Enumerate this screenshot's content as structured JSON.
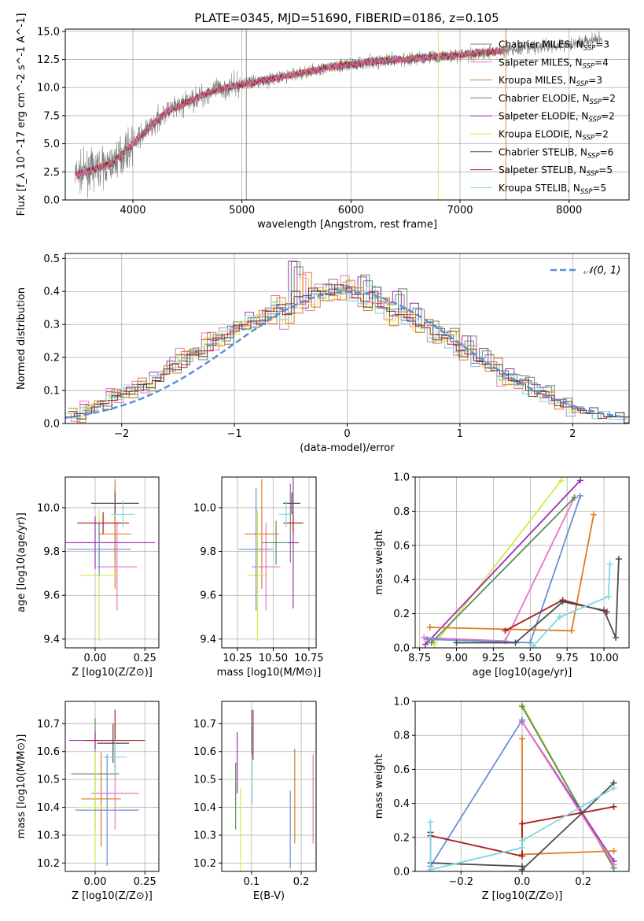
{
  "figure": {
    "title": "PLATE=0345, MJD=51690, FIBERID=0186, z=0.105",
    "models": [
      {
        "name": "Chabrier MILES, N$_{SSP}$=3",
        "label": "Chabrier MILES, N",
        "sub": "SSP",
        "n": "=3",
        "color": "#7f7f7f"
      },
      {
        "name": "Salpeter MILES, N$_{SSP}$=4",
        "label": "Salpeter MILES, N",
        "sub": "SSP",
        "n": "=4",
        "color": "#e377c2"
      },
      {
        "name": "Kroupa MILES, N$_{SSP}$=3",
        "label": "Kroupa MILES, N",
        "sub": "SSP",
        "n": "=3",
        "color": "#e07b20"
      },
      {
        "name": "Chabrier ELODIE, N$_{SSP}$=2",
        "label": "Chabrier ELODIE, N",
        "sub": "SSP",
        "n": "=2",
        "color": "#5a8f5a"
      },
      {
        "name": "Salpeter ELODIE, N$_{SSP}$=2",
        "label": "Salpeter ELODIE, N",
        "sub": "SSP",
        "n": "=2",
        "color": "#9b30b0"
      },
      {
        "name": "Kroupa ELODIE, N$_{SSP}$=2",
        "label": "Kroupa ELODIE, N",
        "sub": "SSP",
        "n": "=2",
        "color": "#d4e84a"
      },
      {
        "name": "Chabrier STELIB, N$_{SSP}$=6",
        "label": "Chabrier STELIB, N",
        "sub": "SSP",
        "n": "=6",
        "color": "#4d4d4d"
      },
      {
        "name": "Salpeter STELIB, N$_{SSP}$=5",
        "label": "Salpeter STELIB, N",
        "sub": "SSP",
        "n": "=5",
        "color": "#a81c1c"
      },
      {
        "name": "Kroupa STELIB, N$_{SSP}$=5",
        "label": "Kroupa STELIB, N",
        "sub": "SSP",
        "n": "=5",
        "color": "#7fd8e0"
      }
    ],
    "blue_color": "#6a8fd8"
  },
  "chart_data": [
    {
      "id": "spectrum",
      "type": "line",
      "title": "PLATE=0345, MJD=51690, FIBERID=0186, z=0.105",
      "xlabel": "wavelength [Angstrom, rest frame]",
      "ylabel": "Flux [f_λ 10^-17 erg cm^-2 s^-1 A^-1]",
      "xlim": [
        3380,
        8550
      ],
      "ylim": [
        0,
        15.2
      ],
      "xticks": [
        4000,
        5000,
        6000,
        7000,
        8000
      ],
      "yticks": [
        0.0,
        2.5,
        5.0,
        7.5,
        10.0,
        12.5,
        15.0
      ],
      "continuum": {
        "x": [
          3500,
          3800,
          4000,
          4300,
          4700,
          5000,
          5400,
          5800,
          6200,
          6600,
          7000,
          7400,
          7800,
          8100,
          8300
        ],
        "y": [
          2.3,
          3.2,
          5.0,
          7.8,
          9.6,
          10.3,
          11.0,
          11.8,
          12.3,
          12.6,
          12.9,
          13.3,
          13.7,
          14.0,
          14.3
        ]
      },
      "spikes_wavelength": [
        5040,
        6800,
        7420
      ],
      "legend": "upper right"
    },
    {
      "id": "residual_hist",
      "type": "line",
      "xlabel": "(data-model)/error",
      "ylabel": "Normed distribution",
      "xlim": [
        -2.5,
        2.5
      ],
      "ylim": [
        0,
        0.515
      ],
      "xticks": [
        -2,
        -1,
        0,
        1,
        2
      ],
      "yticks": [
        0.0,
        0.1,
        0.2,
        0.3,
        0.4,
        0.5
      ],
      "bins": {
        "start": -2.5,
        "width": 0.1
      },
      "legend_label": "𝒩(0, 1)",
      "reference_curve": "normal(0,1)",
      "series": [
        {
          "values": [
            0.02,
            0.03,
            0.04,
            0.05,
            0.07,
            0.08,
            0.1,
            0.09,
            0.11,
            0.12,
            0.14,
            0.15,
            0.2,
            0.19,
            0.22,
            0.21,
            0.24,
            0.27,
            0.25,
            0.29,
            0.3,
            0.32,
            0.31,
            0.35,
            0.34,
            0.36,
            0.49,
            0.35,
            0.4,
            0.38,
            0.42,
            0.41,
            0.4,
            0.39,
            0.45,
            0.38,
            0.37,
            0.36,
            0.39,
            0.33,
            0.35,
            0.3,
            0.31,
            0.27,
            0.28,
            0.24,
            0.25,
            0.2,
            0.22,
            0.18,
            0.16,
            0.15,
            0.13,
            0.14,
            0.1,
            0.11,
            0.07,
            0.06,
            0.05,
            0.04,
            0.03,
            0.03,
            0.02,
            0.02,
            0.02
          ]
        },
        {
          "values": [
            0.03,
            0.02,
            0.05,
            0.06,
            0.06,
            0.09,
            0.08,
            0.1,
            0.12,
            0.11,
            0.13,
            0.16,
            0.17,
            0.21,
            0.2,
            0.23,
            0.26,
            0.24,
            0.28,
            0.27,
            0.31,
            0.29,
            0.33,
            0.32,
            0.37,
            0.3,
            0.35,
            0.44,
            0.36,
            0.41,
            0.37,
            0.39,
            0.43,
            0.4,
            0.36,
            0.35,
            0.38,
            0.31,
            0.32,
            0.34,
            0.28,
            0.3,
            0.26,
            0.25,
            0.27,
            0.21,
            0.22,
            0.19,
            0.17,
            0.18,
            0.13,
            0.12,
            0.11,
            0.1,
            0.08,
            0.09,
            0.06,
            0.05,
            0.04,
            0.04,
            0.03,
            0.03,
            0.02,
            0.02,
            0.02
          ]
        },
        {
          "values": [
            0.02,
            0.03,
            0.03,
            0.05,
            0.06,
            0.07,
            0.09,
            0.11,
            0.1,
            0.12,
            0.13,
            0.15,
            0.18,
            0.17,
            0.21,
            0.22,
            0.22,
            0.26,
            0.27,
            0.28,
            0.3,
            0.31,
            0.3,
            0.34,
            0.35,
            0.33,
            0.4,
            0.37,
            0.41,
            0.4,
            0.39,
            0.42,
            0.41,
            0.38,
            0.37,
            0.4,
            0.35,
            0.34,
            0.33,
            0.32,
            0.3,
            0.29,
            0.27,
            0.26,
            0.24,
            0.22,
            0.21,
            0.19,
            0.18,
            0.16,
            0.15,
            0.13,
            0.12,
            0.1,
            0.09,
            0.08,
            0.07,
            0.05,
            0.05,
            0.04,
            0.03,
            0.03,
            0.02,
            0.02,
            0.02
          ]
        }
      ]
    },
    {
      "id": "age_vs_Z",
      "type": "scatter",
      "xlabel": "Z [log10(Z/Z⊙)]",
      "ylabel": "age [log10(age/yr)]",
      "xlim": [
        -0.15,
        0.32
      ],
      "ylim": [
        9.36,
        10.14
      ],
      "xticks": [
        0.0,
        0.25
      ],
      "yticks": [
        9.4,
        9.6,
        9.8,
        10.0
      ],
      "points": [
        {
          "model": 0,
          "x": 0.1,
          "y": 9.93,
          "xerr": 0.03,
          "yerr": 0.18
        },
        {
          "model": 1,
          "x": 0.11,
          "y": 9.73,
          "xerr": 0.1,
          "yerr": 0.2
        },
        {
          "model": 2,
          "x": 0.1,
          "y": 9.88,
          "xerr": 0.08,
          "yerr": 0.25
        },
        {
          "model": 3,
          "x": 0.02,
          "y": 9.84,
          "xerr": 0.12,
          "yerr": 0.1
        },
        {
          "model": 4,
          "x": 0.0,
          "y": 9.84,
          "xerr": 0.3,
          "yerr": 0.12
        },
        {
          "model": 5,
          "x": 0.02,
          "y": 9.69,
          "xerr": 0.1,
          "yerr": 0.3
        },
        {
          "model": 6,
          "x": 0.1,
          "y": 10.02,
          "xerr": 0.12,
          "yerr": 0.05
        },
        {
          "model": 7,
          "x": 0.04,
          "y": 9.93,
          "xerr": 0.13,
          "yerr": 0.05
        },
        {
          "model": 8,
          "x": 0.14,
          "y": 9.97,
          "xerr": 0.06,
          "yerr": 0.06
        },
        {
          "model": "blue",
          "x": 0.02,
          "y": 9.81,
          "xerr": 0.16,
          "yerr": 0.12
        }
      ]
    },
    {
      "id": "age_vs_mass",
      "type": "scatter",
      "xlabel": "mass [log10(M/M⊙)]",
      "ylabel": "",
      "xlim": [
        10.14,
        10.8
      ],
      "ylim": [
        9.36,
        10.14
      ],
      "xticks": [
        10.25,
        10.5,
        10.75
      ],
      "yticks": [
        9.4,
        9.6,
        9.8,
        10.0
      ],
      "points": [
        {
          "model": 0,
          "x": 10.62,
          "y": 9.93,
          "xerr": 0.03,
          "yerr": 0.18
        },
        {
          "model": 1,
          "x": 10.45,
          "y": 9.73,
          "xerr": 0.1,
          "yerr": 0.2
        },
        {
          "model": 2,
          "x": 10.42,
          "y": 9.88,
          "xerr": 0.12,
          "yerr": 0.25
        },
        {
          "model": 3,
          "x": 10.52,
          "y": 9.84,
          "xerr": 0.1,
          "yerr": 0.1
        },
        {
          "model": 4,
          "x": 10.64,
          "y": 9.84,
          "xerr": 0.04,
          "yerr": 0.3
        },
        {
          "model": 5,
          "x": 10.39,
          "y": 9.69,
          "xerr": 0.07,
          "yerr": 0.3
        },
        {
          "model": 6,
          "x": 10.63,
          "y": 10.02,
          "xerr": 0.06,
          "yerr": 0.05
        },
        {
          "model": 7,
          "x": 10.64,
          "y": 9.93,
          "xerr": 0.07,
          "yerr": 0.05
        },
        {
          "model": 8,
          "x": 10.59,
          "y": 9.97,
          "xerr": 0.05,
          "yerr": 0.06
        },
        {
          "model": "blue",
          "x": 10.38,
          "y": 9.81,
          "xerr": 0.12,
          "yerr": 0.28
        }
      ]
    },
    {
      "id": "weight_vs_age",
      "type": "line",
      "xlabel": "age [log10(age/yr)]",
      "ylabel": "mass weight",
      "xlim": [
        8.72,
        10.17
      ],
      "ylim": [
        0,
        1.0
      ],
      "xticks": [
        8.75,
        9.0,
        9.25,
        9.5,
        9.75,
        10.0
      ],
      "yticks": [
        0.0,
        0.2,
        0.4,
        0.6,
        0.8,
        1.0
      ],
      "series": [
        {
          "model": 5,
          "x": [
            8.85,
            9.71
          ],
          "y": [
            0.02,
            0.98
          ]
        },
        {
          "model": 4,
          "x": [
            8.79,
            9.84
          ],
          "y": [
            0.02,
            0.98
          ]
        },
        {
          "model": 1,
          "x": [
            8.78,
            9.33,
            9.8
          ],
          "y": [
            0.06,
            0.04,
            0.88
          ]
        },
        {
          "model": 3,
          "x": [
            8.83,
            9.8
          ],
          "y": [
            0.03,
            0.88
          ]
        },
        {
          "model": "blue",
          "x": [
            8.8,
            9.5,
            9.84
          ],
          "y": [
            0.05,
            0.03,
            0.89
          ]
        },
        {
          "model": 2,
          "x": [
            8.82,
            9.78,
            9.93
          ],
          "y": [
            0.12,
            0.1,
            0.78
          ]
        },
        {
          "model": 7,
          "x": [
            9.33,
            9.72,
            10.02
          ],
          "y": [
            0.1,
            0.28,
            0.21
          ]
        },
        {
          "model": 6,
          "x": [
            9.0,
            9.4,
            9.72,
            10.0,
            10.08,
            10.1
          ],
          "y": [
            0.03,
            0.03,
            0.27,
            0.22,
            0.06,
            0.52
          ]
        },
        {
          "model": 8,
          "x": [
            9.52,
            9.7,
            10.03,
            10.04
          ],
          "y": [
            0.01,
            0.18,
            0.3,
            0.49
          ]
        }
      ]
    },
    {
      "id": "mass_vs_Z",
      "type": "scatter",
      "xlabel": "Z [log10(Z/Z⊙)]",
      "ylabel": "mass [log10(M/M⊙)]",
      "xlim": [
        -0.15,
        0.32
      ],
      "ylim": [
        10.17,
        10.78
      ],
      "xticks": [
        0.0,
        0.25
      ],
      "yticks": [
        10.2,
        10.3,
        10.4,
        10.5,
        10.6,
        10.7
      ],
      "points": [
        {
          "model": 0,
          "x": 0.1,
          "y": 10.63,
          "xerr": 0.03,
          "yerr": 0.07
        },
        {
          "model": 1,
          "x": 0.1,
          "y": 10.45,
          "xerr": 0.12,
          "yerr": 0.13
        },
        {
          "model": 2,
          "x": 0.03,
          "y": 10.43,
          "xerr": 0.1,
          "yerr": 0.17
        },
        {
          "model": 3,
          "x": 0.0,
          "y": 10.52,
          "xerr": 0.12,
          "yerr": 0.2
        },
        {
          "model": 4,
          "x": 0.0,
          "y": 10.64,
          "xerr": 0.13,
          "yerr": 0.03
        },
        {
          "model": 5,
          "x": 0.0,
          "y": 10.4,
          "xerr": 0.1,
          "yerr": 0.2
        },
        {
          "model": 6,
          "x": 0.09,
          "y": 10.63,
          "xerr": 0.08,
          "yerr": 0.07
        },
        {
          "model": 7,
          "x": 0.1,
          "y": 10.64,
          "xerr": 0.15,
          "yerr": 0.11
        },
        {
          "model": 8,
          "x": 0.1,
          "y": 10.58,
          "xerr": 0.06,
          "yerr": 0.06
        },
        {
          "model": "blue",
          "x": 0.06,
          "y": 10.39,
          "xerr": 0.16,
          "yerr": 0.2
        }
      ]
    },
    {
      "id": "mass_vs_EBV",
      "type": "scatter",
      "xlabel": "E(B-V)",
      "ylabel": "",
      "xlim": [
        0.04,
        0.23
      ],
      "ylim": [
        10.17,
        10.78
      ],
      "xticks": [
        0.1,
        0.2
      ],
      "yticks": [
        10.2,
        10.3,
        10.4,
        10.5,
        10.6,
        10.7
      ],
      "points": [
        {
          "model": 3,
          "x": 0.068,
          "y": 10.44,
          "yerr": 0.12
        },
        {
          "model": 4,
          "x": 0.071,
          "y": 10.56,
          "yerr": 0.11
        },
        {
          "model": 5,
          "x": 0.078,
          "y": 10.3,
          "yerr": 0.17
        },
        {
          "model": 7,
          "x": 0.103,
          "y": 10.66,
          "yerr": 0.09
        },
        {
          "model": 8,
          "x": 0.101,
          "y": 10.55,
          "yerr": 0.14
        },
        {
          "model": 0,
          "x": 0.1,
          "y": 10.67,
          "yerr": 0.08
        },
        {
          "model": "blue",
          "x": 0.178,
          "y": 10.32,
          "yerr": 0.14
        },
        {
          "model": 2,
          "x": 0.187,
          "y": 10.44,
          "yerr": 0.17
        },
        {
          "model": 1,
          "x": 0.224,
          "y": 10.43,
          "yerr": 0.16
        }
      ]
    },
    {
      "id": "weight_vs_Z",
      "type": "line",
      "xlabel": "Z [log10(Z/Z⊙)]",
      "ylabel": "mass weight",
      "xlim": [
        -0.35,
        0.35
      ],
      "ylim": [
        0,
        1.0
      ],
      "xticks": [
        -0.2,
        0.0,
        0.2
      ],
      "yticks": [
        0.0,
        0.2,
        0.4,
        0.6,
        0.8,
        1.0
      ],
      "series": [
        {
          "model": 5,
          "x": [
            0.0,
            0.3
          ],
          "y": [
            0.98,
            0.02
          ]
        },
        {
          "model": 3,
          "x": [
            0.0,
            0.3
          ],
          "y": [
            0.97,
            0.02
          ]
        },
        {
          "model": 4,
          "x": [
            0.0,
            0.3
          ],
          "y": [
            0.88,
            0.06
          ]
        },
        {
          "model": 1,
          "x": [
            0.0,
            0.3
          ],
          "y": [
            0.88,
            0.04
          ]
        },
        {
          "model": "blue",
          "x": [
            -0.3,
            0.0
          ],
          "y": [
            0.03,
            0.89
          ]
        },
        {
          "model": 2,
          "x": [
            0.0,
            0.0,
            0.3
          ],
          "y": [
            0.78,
            0.1,
            0.12
          ]
        },
        {
          "model": 7,
          "x": [
            -0.3,
            0.0,
            0.0,
            0.3
          ],
          "y": [
            0.21,
            0.09,
            0.28,
            0.38
          ]
        },
        {
          "model": 6,
          "x": [
            -0.3,
            -0.3,
            0.0,
            0.0,
            0.3
          ],
          "y": [
            0.23,
            0.05,
            0.03,
            0.01,
            0.52
          ]
        },
        {
          "model": 8,
          "x": [
            -0.3,
            -0.3,
            0.0,
            0.0,
            0.3
          ],
          "y": [
            0.29,
            0.01,
            0.14,
            0.18,
            0.49
          ]
        }
      ]
    }
  ]
}
